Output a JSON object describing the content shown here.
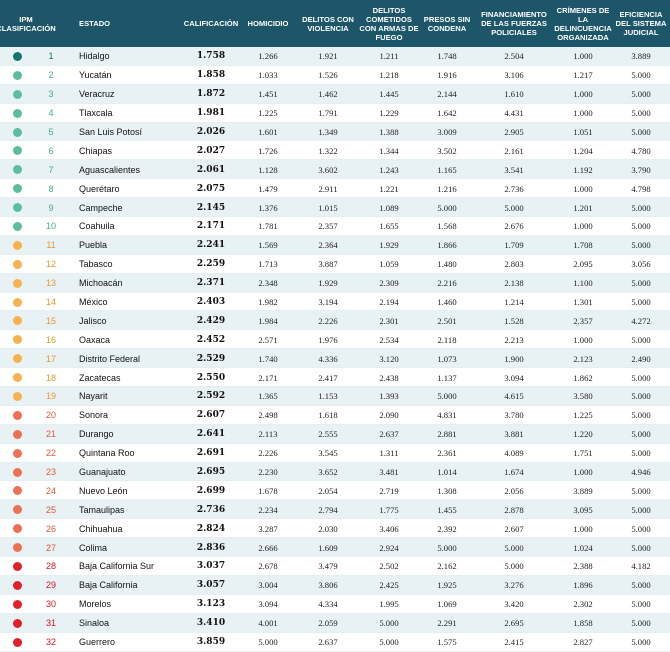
{
  "table": {
    "headers": {
      "ipm": "IPM CLASIFICACIÓN",
      "estado": "ESTADO",
      "calificacion": "CALIFICACIÓN",
      "homicidio": "HOMICIDIO",
      "delitos_violencia": "DELITOS CON VIOLENCIA",
      "delitos_armas": "DELITOS COMETIDOS CON ARMAS DE FUEGO",
      "presos": "PRESOS SIN CONDENA",
      "financiamiento": "FINANCIAMIENTO DE LAS FUERZAS POLICIALES",
      "crimenes": "CRÍMENES DE LA DELINCUENCIA ORGANIZADA",
      "eficiencia": "EFICIENCIA DEL SISTEMA JUDICIAL"
    },
    "colors": {
      "header_bg": "#1c5668",
      "row_alt_bg": "#e8f1f4"
    },
    "rows": [
      {
        "rank": "1",
        "estado": "Hidalgo",
        "calificacion": "1.758",
        "homicidio": "1.266",
        "delitos_violencia": "1.921",
        "delitos_armas": "1.211",
        "presos": "1.748",
        "financiamiento": "2.504",
        "crimenes": "1.000",
        "eficiencia": "3.889",
        "dot": "#17736e",
        "rank_color": "#17736e"
      },
      {
        "rank": "2",
        "estado": "Yucatán",
        "calificacion": "1.858",
        "homicidio": "1.033",
        "delitos_violencia": "1.526",
        "delitos_armas": "1.218",
        "presos": "1.916",
        "financiamiento": "3.106",
        "crimenes": "1.217",
        "eficiencia": "5.000",
        "dot": "#5bbf9f",
        "rank_color": "#3fae8d"
      },
      {
        "rank": "3",
        "estado": "Veracruz",
        "calificacion": "1.872",
        "homicidio": "1.451",
        "delitos_violencia": "1.462",
        "delitos_armas": "1.445",
        "presos": "2.144",
        "financiamiento": "1.610",
        "crimenes": "1.000",
        "eficiencia": "5.000",
        "dot": "#5bbf9f",
        "rank_color": "#3fae8d"
      },
      {
        "rank": "4",
        "estado": "Tlaxcala",
        "calificacion": "1.981",
        "homicidio": "1.225",
        "delitos_violencia": "1.791",
        "delitos_armas": "1.229",
        "presos": "1.642",
        "financiamiento": "4.431",
        "crimenes": "1.000",
        "eficiencia": "5.000",
        "dot": "#5bbf9f",
        "rank_color": "#3fae8d"
      },
      {
        "rank": "5",
        "estado": "San Luis Potosí",
        "calificacion": "2.026",
        "homicidio": "1.601",
        "delitos_violencia": "1.349",
        "delitos_armas": "1.388",
        "presos": "3.009",
        "financiamiento": "2.905",
        "crimenes": "1.051",
        "eficiencia": "5.000",
        "dot": "#5bbf9f",
        "rank_color": "#3fae8d"
      },
      {
        "rank": "6",
        "estado": "Chiapas",
        "calificacion": "2.027",
        "homicidio": "1.726",
        "delitos_violencia": "1.322",
        "delitos_armas": "1.344",
        "presos": "3.502",
        "financiamiento": "2.161",
        "crimenes": "1.204",
        "eficiencia": "4.780",
        "dot": "#5bbf9f",
        "rank_color": "#3fae8d"
      },
      {
        "rank": "7",
        "estado": "Aguascalientes",
        "calificacion": "2.061",
        "homicidio": "1.128",
        "delitos_violencia": "3.602",
        "delitos_armas": "1.243",
        "presos": "1.165",
        "financiamiento": "3.541",
        "crimenes": "1.192",
        "eficiencia": "3.790",
        "dot": "#5bbf9f",
        "rank_color": "#3fae8d"
      },
      {
        "rank": "8",
        "estado": "Querétaro",
        "calificacion": "2.075",
        "homicidio": "1.479",
        "delitos_violencia": "2.911",
        "delitos_armas": "1.221",
        "presos": "1.216",
        "financiamiento": "2.736",
        "crimenes": "1.000",
        "eficiencia": "4.798",
        "dot": "#5bbf9f",
        "rank_color": "#3fae8d"
      },
      {
        "rank": "9",
        "estado": "Campeche",
        "calificacion": "2.145",
        "homicidio": "1.376",
        "delitos_violencia": "1.015",
        "delitos_armas": "1.089",
        "presos": "5.000",
        "financiamiento": "5.000",
        "crimenes": "1.201",
        "eficiencia": "5.000",
        "dot": "#5bbf9f",
        "rank_color": "#3fae8d"
      },
      {
        "rank": "10",
        "estado": "Coahuila",
        "calificacion": "2.171",
        "homicidio": "1.781",
        "delitos_violencia": "2.357",
        "delitos_armas": "1.655",
        "presos": "1.568",
        "financiamiento": "2.676",
        "crimenes": "1.000",
        "eficiencia": "5.000",
        "dot": "#5bbf9f",
        "rank_color": "#3fae8d"
      },
      {
        "rank": "11",
        "estado": "Puebla",
        "calificacion": "2.241",
        "homicidio": "1.569",
        "delitos_violencia": "2.364",
        "delitos_armas": "1.929",
        "presos": "1.866",
        "financiamiento": "1.709",
        "crimenes": "1.708",
        "eficiencia": "5.000",
        "dot": "#f7b24f",
        "rank_color": "#e8972c"
      },
      {
        "rank": "12",
        "estado": "Tabasco",
        "calificacion": "2.259",
        "homicidio": "1.713",
        "delitos_violencia": "3.887",
        "delitos_armas": "1.059",
        "presos": "1.480",
        "financiamiento": "2.803",
        "crimenes": "2.095",
        "eficiencia": "3.056",
        "dot": "#f7b24f",
        "rank_color": "#e8972c"
      },
      {
        "rank": "13",
        "estado": "Michoacán",
        "calificacion": "2.371",
        "homicidio": "2.348",
        "delitos_violencia": "1.929",
        "delitos_armas": "2.309",
        "presos": "2.216",
        "financiamiento": "2.138",
        "crimenes": "1.100",
        "eficiencia": "5.000",
        "dot": "#f7b24f",
        "rank_color": "#e8972c"
      },
      {
        "rank": "14",
        "estado": "México",
        "calificacion": "2.403",
        "homicidio": "1.982",
        "delitos_violencia": "3.194",
        "delitos_armas": "2.194",
        "presos": "1.460",
        "financiamiento": "1.214",
        "crimenes": "1.301",
        "eficiencia": "5.000",
        "dot": "#f7b24f",
        "rank_color": "#e8972c"
      },
      {
        "rank": "15",
        "estado": "Jalisco",
        "calificacion": "2.429",
        "homicidio": "1.984",
        "delitos_violencia": "2.226",
        "delitos_armas": "2.301",
        "presos": "2.501",
        "financiamiento": "1.528",
        "crimenes": "2.357",
        "eficiencia": "4.272",
        "dot": "#f7b24f",
        "rank_color": "#e8972c"
      },
      {
        "rank": "16",
        "estado": "Oaxaca",
        "calificacion": "2.452",
        "homicidio": "2.571",
        "delitos_violencia": "1.976",
        "delitos_armas": "2.534",
        "presos": "2.118",
        "financiamiento": "2.213",
        "crimenes": "1.000",
        "eficiencia": "5.000",
        "dot": "#f7b24f",
        "rank_color": "#e8972c"
      },
      {
        "rank": "17",
        "estado": "Distrito Federal",
        "calificacion": "2.529",
        "homicidio": "1.740",
        "delitos_violencia": "4.336",
        "delitos_armas": "3.120",
        "presos": "1.073",
        "financiamiento": "1.900",
        "crimenes": "2.123",
        "eficiencia": "2.490",
        "dot": "#f7b24f",
        "rank_color": "#e8972c"
      },
      {
        "rank": "18",
        "estado": "Zacatecas",
        "calificacion": "2.550",
        "homicidio": "2.171",
        "delitos_violencia": "2.417",
        "delitos_armas": "2.438",
        "presos": "1.137",
        "financiamiento": "3.094",
        "crimenes": "1.862",
        "eficiencia": "5.000",
        "dot": "#f7b24f",
        "rank_color": "#e8972c"
      },
      {
        "rank": "19",
        "estado": "Nayarit",
        "calificacion": "2.592",
        "homicidio": "1.365",
        "delitos_violencia": "1.153",
        "delitos_armas": "1.393",
        "presos": "5.000",
        "financiamiento": "4.615",
        "crimenes": "3.580",
        "eficiencia": "5.000",
        "dot": "#f7b24f",
        "rank_color": "#e8972c"
      },
      {
        "rank": "20",
        "estado": "Sonora",
        "calificacion": "2.607",
        "homicidio": "2.498",
        "delitos_violencia": "1.618",
        "delitos_armas": "2.090",
        "presos": "4.831",
        "financiamiento": "3.780",
        "crimenes": "1.225",
        "eficiencia": "5.000",
        "dot": "#ee7053",
        "rank_color": "#e3573a"
      },
      {
        "rank": "21",
        "estado": "Durango",
        "calificacion": "2.641",
        "homicidio": "2.113",
        "delitos_violencia": "2.555",
        "delitos_armas": "2.637",
        "presos": "2.881",
        "financiamiento": "3.881",
        "crimenes": "1.220",
        "eficiencia": "5.000",
        "dot": "#ee7053",
        "rank_color": "#e3573a"
      },
      {
        "rank": "22",
        "estado": "Quintana Roo",
        "calificacion": "2.691",
        "homicidio": "2.226",
        "delitos_violencia": "3.545",
        "delitos_armas": "1.311",
        "presos": "2.361",
        "financiamiento": "4.089",
        "crimenes": "1.751",
        "eficiencia": "5.000",
        "dot": "#ee7053",
        "rank_color": "#e3573a"
      },
      {
        "rank": "23",
        "estado": "Guanajuato",
        "calificacion": "2.695",
        "homicidio": "2.230",
        "delitos_violencia": "3.652",
        "delitos_armas": "3.481",
        "presos": "1.014",
        "financiamiento": "1.674",
        "crimenes": "1.000",
        "eficiencia": "4.946",
        "dot": "#ee7053",
        "rank_color": "#e3573a"
      },
      {
        "rank": "24",
        "estado": "Nuevo León",
        "calificacion": "2.699",
        "homicidio": "1.678",
        "delitos_violencia": "2.054",
        "delitos_armas": "2.719",
        "presos": "1.308",
        "financiamiento": "2.056",
        "crimenes": "3.889",
        "eficiencia": "5.000",
        "dot": "#ee7053",
        "rank_color": "#e3573a"
      },
      {
        "rank": "25",
        "estado": "Tamaulipas",
        "calificacion": "2.736",
        "homicidio": "2.234",
        "delitos_violencia": "2.794",
        "delitos_armas": "1.775",
        "presos": "1.455",
        "financiamiento": "2.878",
        "crimenes": "3.095",
        "eficiencia": "5.000",
        "dot": "#ee7053",
        "rank_color": "#e3573a"
      },
      {
        "rank": "26",
        "estado": "Chihuahua",
        "calificacion": "2.824",
        "homicidio": "3.287",
        "delitos_violencia": "2.030",
        "delitos_armas": "3.406",
        "presos": "2.392",
        "financiamiento": "2.607",
        "crimenes": "1.000",
        "eficiencia": "5.000",
        "dot": "#ee7053",
        "rank_color": "#e3573a"
      },
      {
        "rank": "27",
        "estado": "Colima",
        "calificacion": "2.836",
        "homicidio": "2.666",
        "delitos_violencia": "1.609",
        "delitos_armas": "2.924",
        "presos": "5.000",
        "financiamiento": "5.000",
        "crimenes": "1.024",
        "eficiencia": "5.000",
        "dot": "#ee7053",
        "rank_color": "#e3573a"
      },
      {
        "rank": "28",
        "estado": "Baja California Sur",
        "calificacion": "3.037",
        "homicidio": "2.678",
        "delitos_violencia": "3.479",
        "delitos_armas": "2.502",
        "presos": "2.162",
        "financiamiento": "5.000",
        "crimenes": "2.388",
        "eficiencia": "4.182",
        "dot": "#e0202a",
        "rank_color": "#d8151f"
      },
      {
        "rank": "29",
        "estado": "Baja California",
        "calificacion": "3.057",
        "homicidio": "3.004",
        "delitos_violencia": "3.806",
        "delitos_armas": "2.425",
        "presos": "1.925",
        "financiamiento": "3.276",
        "crimenes": "1.896",
        "eficiencia": "5.000",
        "dot": "#e0202a",
        "rank_color": "#d8151f"
      },
      {
        "rank": "30",
        "estado": "Morelos",
        "calificacion": "3.123",
        "homicidio": "3.094",
        "delitos_violencia": "4.334",
        "delitos_armas": "1.995",
        "presos": "1.069",
        "financiamiento": "3.420",
        "crimenes": "2.302",
        "eficiencia": "5.000",
        "dot": "#e0202a",
        "rank_color": "#d8151f"
      },
      {
        "rank": "31",
        "estado": "Sinaloa",
        "calificacion": "3.410",
        "homicidio": "4.001",
        "delitos_violencia": "2.059",
        "delitos_armas": "5.000",
        "presos": "2.291",
        "financiamiento": "2.695",
        "crimenes": "1.858",
        "eficiencia": "5.000",
        "dot": "#e0202a",
        "rank_color": "#d8151f"
      },
      {
        "rank": "32",
        "estado": "Guerrero",
        "calificacion": "3.859",
        "homicidio": "5.000",
        "delitos_violencia": "2.637",
        "delitos_armas": "5.000",
        "presos": "1.575",
        "financiamiento": "2.415",
        "crimenes": "2.827",
        "eficiencia": "5.000",
        "dot": "#e0202a",
        "rank_color": "#d8151f"
      }
    ]
  }
}
